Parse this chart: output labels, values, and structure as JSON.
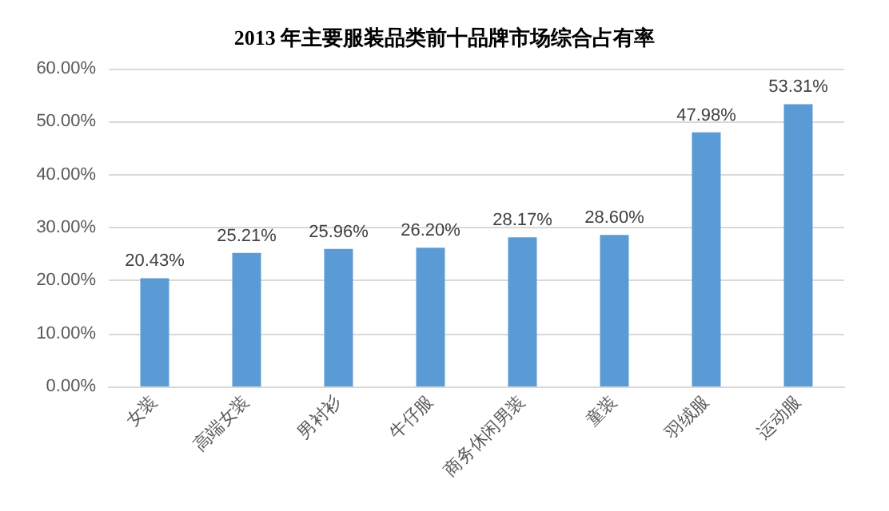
{
  "chart_data": {
    "type": "bar",
    "title": "2013 年主要服装品类前十品牌市场综合占有率",
    "categories": [
      "女装",
      "高端女装",
      "男衬衫",
      "牛仔服",
      "商务休闲男装",
      "童装",
      "羽绒服",
      "运动服"
    ],
    "values": [
      20.43,
      25.21,
      25.96,
      26.2,
      28.17,
      28.6,
      47.98,
      53.31
    ],
    "value_labels": [
      "20.43%",
      "25.21%",
      "25.96%",
      "26.20%",
      "28.17%",
      "28.60%",
      "47.98%",
      "53.31%"
    ],
    "color": "#5b9bd5",
    "ylim": [
      0,
      60
    ],
    "yticks": [
      {
        "value": 0,
        "label": "0.00%"
      },
      {
        "value": 10,
        "label": "10.00%"
      },
      {
        "value": 20,
        "label": "20.00%"
      },
      {
        "value": 30,
        "label": "30.00%"
      },
      {
        "value": 40,
        "label": "40.00%"
      },
      {
        "value": 50,
        "label": "50.00%"
      },
      {
        "value": 60,
        "label": "60.00%"
      }
    ],
    "grid": "y"
  }
}
